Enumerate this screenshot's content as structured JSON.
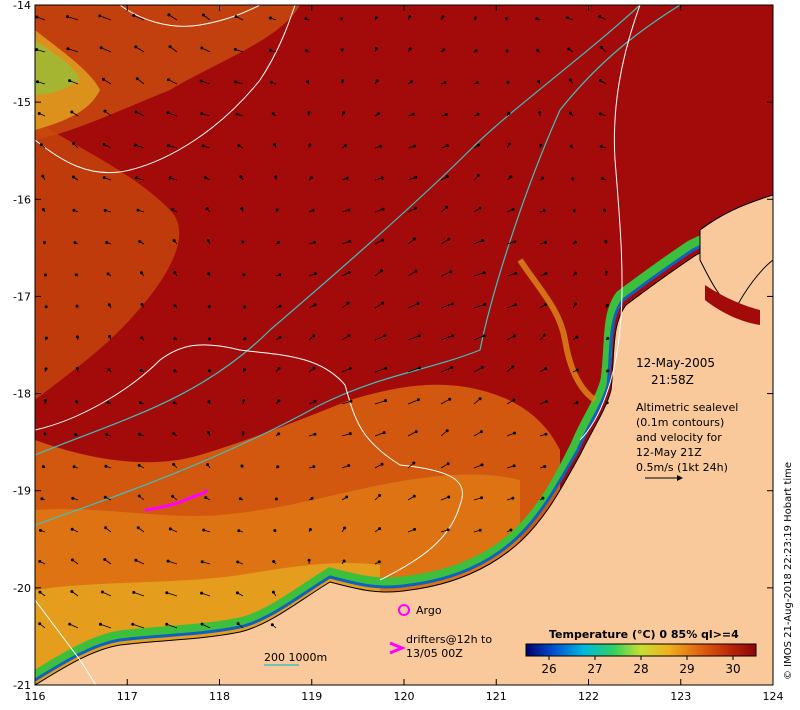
{
  "map": {
    "date": "12-May-2005",
    "time": "21:58Z",
    "altimetry_lines": [
      "Altimetric sealevel",
      "(0.1m contours)",
      "and velocity for",
      "12-May 21Z",
      "0.5m/s (1kt 24h)"
    ],
    "argo_label": "Argo",
    "drifters_line1": "drifters@12h to",
    "drifters_line2": "13/05 00Z",
    "depth_label": "200  1000m",
    "credit": "© IMOS 21-Aug-2018 22:23:19 Hobart time",
    "colorbar": {
      "title": "Temperature (°C) 0 85% ql>=4",
      "ticks": [
        "26",
        "27",
        "28",
        "29",
        "30"
      ],
      "min": 25.5,
      "max": 30.5
    },
    "axes": {
      "x_ticks": [
        "116",
        "117",
        "118",
        "119",
        "120",
        "121",
        "122",
        "123",
        "124"
      ],
      "y_ticks": [
        "-14",
        "-15",
        "-16",
        "-17",
        "-18",
        "-19",
        "-20",
        "-21"
      ]
    },
    "colors": {
      "warm_water": "#a20a0a",
      "land": "#f9c89b",
      "shelf_water": "#d35a10",
      "coastal_green": "#3cbf3c",
      "depth_contour": "#40c0c0",
      "drifter": "#ff00ff"
    }
  }
}
